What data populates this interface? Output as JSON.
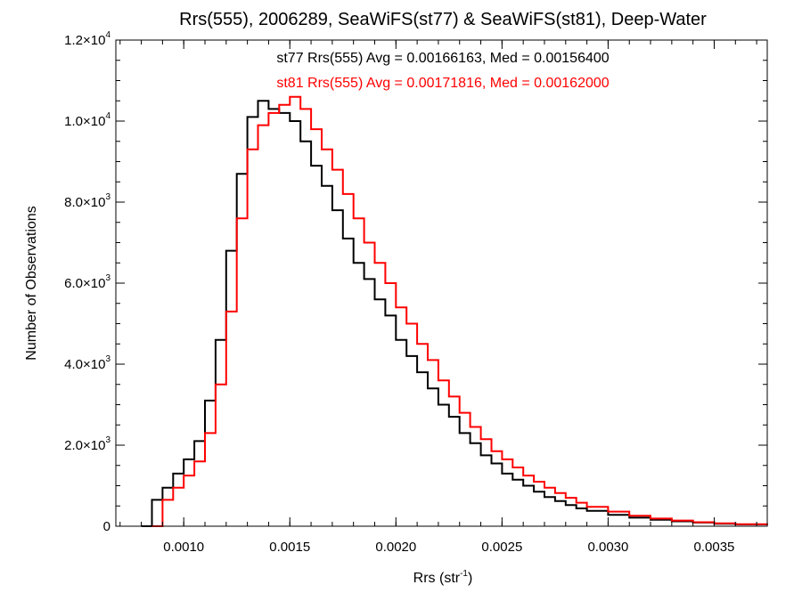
{
  "chart_data": {
    "type": "histogram-step",
    "title": "Rrs(555), 2006289, SeaWiFS(st77) & SeaWiFS(st81), Deep-Water",
    "xlabel": "Rrs (str",
    "xlabel_sup": "-1",
    "xlabel_close": ")",
    "ylabel": "Number of Observations",
    "xlim": [
      0.00068,
      0.00375
    ],
    "ylim": [
      0,
      12000
    ],
    "grid": false,
    "x_ticks": [
      {
        "value": 0.001,
        "label": "0.0010"
      },
      {
        "value": 0.0015,
        "label": "0.0015"
      },
      {
        "value": 0.002,
        "label": "0.0020"
      },
      {
        "value": 0.0025,
        "label": "0.0025"
      },
      {
        "value": 0.003,
        "label": "0.0030"
      },
      {
        "value": 0.0035,
        "label": "0.0035"
      }
    ],
    "y_ticks": [
      {
        "value": 0,
        "mant": "0",
        "exp": ""
      },
      {
        "value": 2000,
        "mant": "2.0×10",
        "exp": "3"
      },
      {
        "value": 4000,
        "mant": "4.0×10",
        "exp": "3"
      },
      {
        "value": 6000,
        "mant": "6.0×10",
        "exp": "3"
      },
      {
        "value": 8000,
        "mant": "8.0×10",
        "exp": "3"
      },
      {
        "value": 10000,
        "mant": "1.0×10",
        "exp": "4"
      },
      {
        "value": 12000,
        "mant": "1.2×10",
        "exp": "4"
      }
    ],
    "annotations": [
      "st77 Rrs(555) Avg = 0.00166163, Med = 0.00156400",
      "st81 Rrs(555) Avg = 0.00171816, Med = 0.00162000"
    ],
    "series": [
      {
        "color": "#000000",
        "x": [
          0.0008,
          0.00085,
          0.0009,
          0.00095,
          0.001,
          0.00105,
          0.0011,
          0.00115,
          0.0012,
          0.00125,
          0.0013,
          0.00135,
          0.0014,
          0.00145,
          0.0015,
          0.00155,
          0.0016,
          0.00165,
          0.0017,
          0.00175,
          0.0018,
          0.00185,
          0.0019,
          0.00195,
          0.002,
          0.00205,
          0.0021,
          0.00215,
          0.0022,
          0.00225,
          0.0023,
          0.00235,
          0.0024,
          0.00245,
          0.0025,
          0.00255,
          0.0026,
          0.00265,
          0.0027,
          0.00275,
          0.0028,
          0.00285,
          0.0029,
          0.003,
          0.0031,
          0.0032,
          0.0033,
          0.0034,
          0.0035,
          0.0036,
          0.00375
        ],
        "y": [
          0,
          650,
          950,
          1300,
          1650,
          2100,
          3100,
          4600,
          6800,
          8700,
          10100,
          10500,
          10300,
          10200,
          10000,
          9500,
          8900,
          8400,
          7800,
          7100,
          6500,
          6100,
          5600,
          5200,
          4600,
          4200,
          3800,
          3400,
          3000,
          2700,
          2300,
          2050,
          1750,
          1550,
          1300,
          1150,
          1000,
          850,
          720,
          620,
          520,
          440,
          380,
          280,
          210,
          160,
          120,
          90,
          60,
          45,
          30
        ]
      },
      {
        "color": "#ff0000",
        "x": [
          0.00085,
          0.0009,
          0.00095,
          0.001,
          0.00105,
          0.0011,
          0.00115,
          0.0012,
          0.00125,
          0.0013,
          0.00135,
          0.0014,
          0.00145,
          0.0015,
          0.00155,
          0.0016,
          0.00165,
          0.0017,
          0.00175,
          0.0018,
          0.00185,
          0.0019,
          0.00195,
          0.002,
          0.00205,
          0.0021,
          0.00215,
          0.0022,
          0.00225,
          0.0023,
          0.00235,
          0.0024,
          0.00245,
          0.0025,
          0.00255,
          0.0026,
          0.00265,
          0.0027,
          0.00275,
          0.0028,
          0.00285,
          0.0029,
          0.003,
          0.0031,
          0.0032,
          0.0033,
          0.0034,
          0.0035,
          0.0036,
          0.00375
        ],
        "y": [
          0,
          650,
          950,
          1250,
          1600,
          2300,
          3500,
          5300,
          7600,
          9300,
          9900,
          10200,
          10400,
          10600,
          10300,
          9800,
          9300,
          8800,
          8200,
          7600,
          7000,
          6500,
          6000,
          5400,
          5000,
          4500,
          4100,
          3600,
          3200,
          2800,
          2450,
          2150,
          1850,
          1650,
          1450,
          1250,
          1100,
          950,
          820,
          700,
          580,
          480,
          360,
          260,
          190,
          140,
          100,
          70,
          50,
          30
        ]
      }
    ]
  }
}
